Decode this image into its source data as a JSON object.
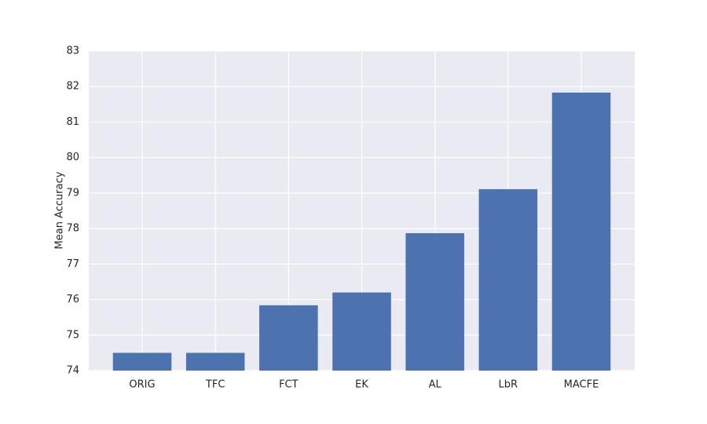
{
  "chart_data": {
    "type": "bar",
    "y_label": "Mean Accuracy",
    "categories": [
      "ORIG",
      "TFC",
      "FCT",
      "EK",
      "AL",
      "LbR",
      "MACFE"
    ],
    "values": [
      74.5,
      74.5,
      75.84,
      76.2,
      77.87,
      79.11,
      81.83
    ],
    "color": "#4c72b0",
    "ylim": [
      74,
      83
    ],
    "yticks": [
      74,
      75,
      76,
      77,
      78,
      79,
      80,
      81,
      82,
      83
    ],
    "grid": true
  }
}
